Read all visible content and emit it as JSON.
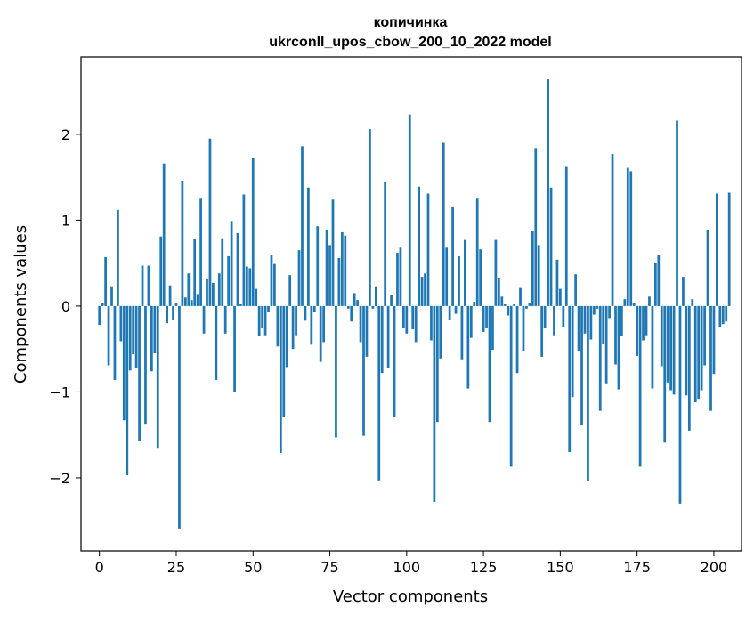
{
  "chart_data": {
    "type": "bar",
    "title": "копичинка",
    "subtitle": "ukrconll_upos_cbow_200_10_2022 model",
    "xlabel": "Vector components",
    "ylabel": "Components values",
    "xlim": [
      -6,
      209
    ],
    "ylim": [
      -2.85,
      2.9
    ],
    "xticks": [
      0,
      25,
      50,
      75,
      100,
      125,
      150,
      175,
      200
    ],
    "yticks": [
      -2,
      -1,
      0,
      1,
      2
    ],
    "ytick_labels": [
      "−2",
      "−1",
      "0",
      "1",
      "2"
    ],
    "grid": false,
    "bar_color": "#1f77b4",
    "values": [
      -0.22,
      0.04,
      0.57,
      -0.69,
      0.23,
      -0.86,
      1.12,
      -0.41,
      -1.33,
      -1.97,
      -0.75,
      -0.56,
      -0.72,
      -1.57,
      0.47,
      -1.37,
      0.47,
      -0.76,
      -0.55,
      -1.65,
      0.81,
      1.66,
      -0.2,
      0.24,
      -0.16,
      0.03,
      -2.59,
      1.46,
      0.1,
      0.38,
      0.07,
      0.78,
      0.14,
      1.25,
      -0.32,
      0.31,
      1.95,
      0.27,
      -0.86,
      0.38,
      0.79,
      -0.32,
      0.58,
      0.99,
      -1.0,
      0.85,
      0.02,
      1.3,
      0.46,
      0.44,
      1.72,
      0.2,
      -0.35,
      -0.26,
      -0.34,
      -0.07,
      0.6,
      0.49,
      -0.47,
      -1.71,
      -1.29,
      -0.71,
      0.36,
      -0.5,
      -0.34,
      0.65,
      1.86,
      -0.17,
      1.38,
      -0.45,
      -0.07,
      0.93,
      -0.65,
      -0.42,
      0.89,
      0.71,
      1.24,
      -1.53,
      0.56,
      0.86,
      0.82,
      -0.03,
      -0.18,
      0.15,
      0.07,
      -0.42,
      -1.51,
      -0.59,
      2.06,
      -0.03,
      0.23,
      -2.03,
      -0.78,
      1.45,
      -0.72,
      0.13,
      -1.29,
      0.62,
      0.68,
      -0.25,
      -0.32,
      2.23,
      -0.27,
      -0.42,
      1.39,
      0.34,
      0.38,
      1.31,
      -0.4,
      -2.28,
      -1.35,
      -0.61,
      1.9,
      0.68,
      -0.16,
      1.15,
      -0.09,
      0.58,
      -0.62,
      0.77,
      -0.96,
      -0.37,
      0.05,
      1.25,
      0.66,
      -0.3,
      -0.26,
      -1.35,
      -0.51,
      0.77,
      0.33,
      0.11,
      0.02,
      -0.11,
      -1.87,
      0.02,
      -0.78,
      0.21,
      -0.52,
      -0.03,
      0.04,
      0.88,
      1.84,
      0.71,
      -0.59,
      -0.26,
      2.64,
      1.38,
      -0.34,
      0.54,
      0.2,
      -0.24,
      1.62,
      -1.7,
      -1.06,
      0.37,
      -0.52,
      -1.39,
      -0.32,
      -2.04,
      -0.39,
      -0.1,
      -0.03,
      -1.22,
      -0.44,
      -0.9,
      -0.14,
      1.77,
      -0.68,
      -0.97,
      -0.35,
      0.08,
      1.61,
      1.57,
      0.04,
      -0.58,
      -1.87,
      -0.4,
      -0.34,
      0.11,
      -0.96,
      0.5,
      0.6,
      -0.7,
      -1.59,
      -0.89,
      -0.98,
      -1.03,
      2.16,
      -2.3,
      0.34,
      -1.04,
      -1.45,
      0.08,
      -1.12,
      -1.08,
      -0.98,
      -0.69,
      0.89,
      -1.22,
      -0.79,
      1.31,
      -0.24,
      -0.21,
      -0.18,
      1.32
    ]
  }
}
